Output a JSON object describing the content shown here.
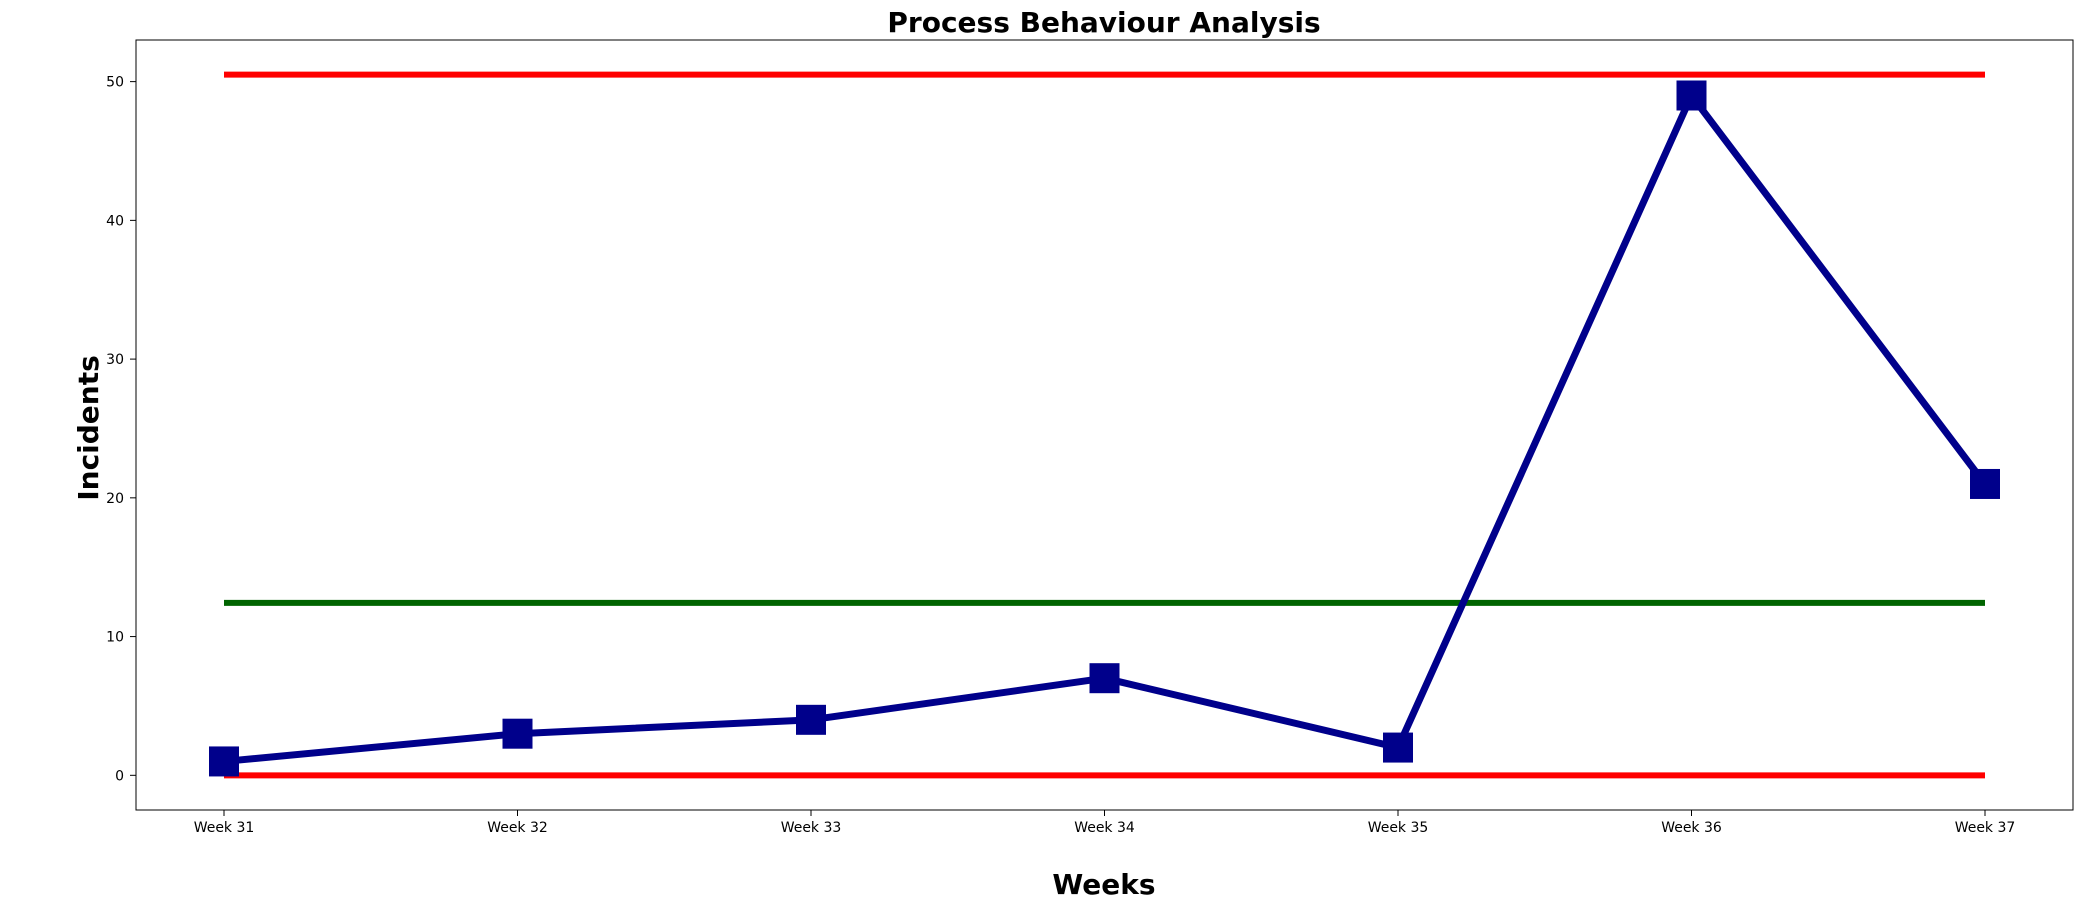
{
  "chart_data": {
    "type": "line",
    "title": "Process Behaviour Analysis",
    "xlabel": "Weeks",
    "ylabel": "Incidents",
    "categories": [
      "Week 31",
      "Week 32",
      "Week 33",
      "Week 34",
      "Week 35",
      "Week 36",
      "Week 37"
    ],
    "series": [
      {
        "values": [
          1,
          3,
          4,
          7,
          2,
          49,
          21
        ],
        "color": "#00008b",
        "marker": "square"
      }
    ],
    "reference_lines": [
      {
        "value": 50.5,
        "color": "#ff0000"
      },
      {
        "value": 12.43,
        "color": "#006400"
      },
      {
        "value": 0,
        "color": "#ff0000"
      }
    ],
    "ylim": [
      -2.5,
      53
    ],
    "yticks": [
      0,
      10,
      20,
      30,
      40,
      50
    ],
    "grid": false,
    "legend": "none"
  }
}
